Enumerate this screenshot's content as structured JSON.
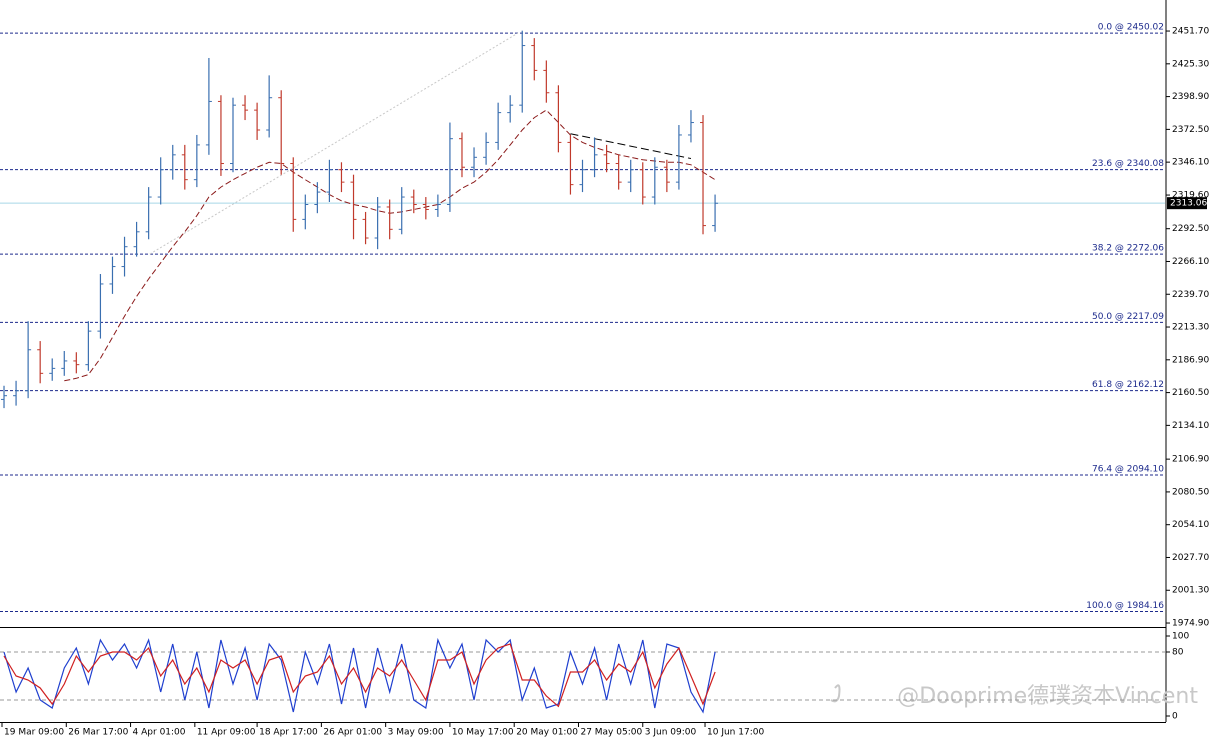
{
  "chart_data": [
    {
      "type": "ohlc",
      "up_color": "#3a6fb0",
      "down_color": "#c0392b",
      "x": [
        1,
        4,
        7,
        10,
        13,
        16,
        19,
        22,
        25,
        28,
        31,
        34,
        37,
        40,
        43,
        46,
        49,
        52,
        55,
        58,
        61,
        64,
        67,
        70,
        73,
        76,
        79,
        82,
        85,
        88,
        91,
        94,
        97,
        100,
        103,
        106,
        109,
        112,
        115,
        118,
        121,
        124,
        127,
        130,
        133,
        136,
        139,
        142,
        145,
        148,
        151,
        154,
        157,
        160,
        163,
        166,
        169,
        172,
        175,
        178
      ],
      "open": [
        2155,
        2158,
        2162,
        2195,
        2176,
        2180,
        2186,
        2183,
        2210,
        2248,
        2262,
        2278,
        2290,
        2318,
        2340,
        2352,
        2332,
        2360,
        2395,
        2345,
        2392,
        2388,
        2372,
        2398,
        2345,
        2300,
        2312,
        2322,
        2340,
        2330,
        2300,
        2285,
        2310,
        2292,
        2318,
        2312,
        2308,
        2312,
        2365,
        2342,
        2350,
        2362,
        2386,
        2392,
        2440,
        2420,
        2402,
        2362,
        2328,
        2340,
        2352,
        2345,
        2330,
        2340,
        2318,
        2342,
        2330,
        2368,
        2378,
        2295
      ],
      "high": [
        2166,
        2170,
        2218,
        2202,
        2188,
        2194,
        2193,
        2218,
        2256,
        2270,
        2286,
        2298,
        2326,
        2350,
        2360,
        2360,
        2368,
        2430,
        2400,
        2398,
        2400,
        2394,
        2416,
        2404,
        2350,
        2320,
        2330,
        2348,
        2346,
        2336,
        2306,
        2318,
        2316,
        2326,
        2324,
        2318,
        2320,
        2378,
        2370,
        2358,
        2370,
        2394,
        2400,
        2452,
        2446,
        2428,
        2408,
        2368,
        2348,
        2366,
        2360,
        2352,
        2348,
        2346,
        2350,
        2348,
        2376,
        2388,
        2384,
        2320
      ],
      "low": [
        2148,
        2150,
        2156,
        2168,
        2170,
        2174,
        2176,
        2178,
        2204,
        2240,
        2254,
        2270,
        2284,
        2312,
        2332,
        2324,
        2326,
        2352,
        2335,
        2338,
        2380,
        2364,
        2366,
        2336,
        2290,
        2292,
        2305,
        2314,
        2322,
        2284,
        2280,
        2276,
        2284,
        2288,
        2305,
        2300,
        2302,
        2306,
        2334,
        2334,
        2344,
        2356,
        2378,
        2386,
        2412,
        2394,
        2354,
        2320,
        2322,
        2334,
        2338,
        2324,
        2322,
        2312,
        2312,
        2322,
        2324,
        2362,
        2288,
        2290
      ],
      "close": [
        2158,
        2162,
        2195,
        2176,
        2180,
        2186,
        2183,
        2210,
        2248,
        2262,
        2278,
        2290,
        2318,
        2340,
        2352,
        2332,
        2360,
        2395,
        2345,
        2392,
        2388,
        2372,
        2398,
        2345,
        2300,
        2312,
        2322,
        2340,
        2330,
        2300,
        2285,
        2310,
        2292,
        2318,
        2312,
        2308,
        2312,
        2365,
        2342,
        2350,
        2362,
        2386,
        2392,
        2440,
        2420,
        2402,
        2362,
        2328,
        2340,
        2352,
        2345,
        2330,
        2340,
        2318,
        2342,
        2330,
        2368,
        2378,
        2295,
        2313
      ],
      "moving_average": {
        "color": "#8b1a1a",
        "values": [
          null,
          null,
          null,
          null,
          null,
          2170,
          2172,
          2175,
          2188,
          2205,
          2222,
          2238,
          2252,
          2265,
          2278,
          2290,
          2303,
          2318,
          2326,
          2332,
          2337,
          2342,
          2346,
          2345,
          2338,
          2332,
          2326,
          2320,
          2315,
          2312,
          2310,
          2307,
          2305,
          2306,
          2308,
          2310,
          2312,
          2318,
          2325,
          2330,
          2338,
          2348,
          2360,
          2372,
          2382,
          2388,
          2378,
          2368,
          2362,
          2358,
          2355,
          2352,
          2350,
          2348,
          2347,
          2346,
          2346,
          2344,
          2338,
          2332
        ]
      },
      "trendline": {
        "color": "#000000",
        "x": [
          142,
          172
        ],
        "y": [
          2369,
          2349
        ]
      },
      "fib_line": {
        "color": "#c8c8c8",
        "x": [
          37.3,
          128.9
        ],
        "y": [
          2272.06,
          2450.02
        ]
      },
      "levels": [
        {
          "label": "0.0 @ 2450.02",
          "value": 2450.02
        },
        {
          "label": "23.6 @ 2340.08",
          "value": 2340.08
        },
        {
          "label": "38.2 @ 2272.06",
          "value": 2272.06
        },
        {
          "label": "50.0 @ 2217.09",
          "value": 2217.09
        },
        {
          "label": "61.8 @ 2162.12",
          "value": 2162.12
        },
        {
          "label": "76.4 @ 2094.10",
          "value": 2094.1
        },
        {
          "label": "100.0 @ 1984.16",
          "value": 1984.16
        }
      ],
      "current": {
        "value": 2313.06,
        "label": "2313.06"
      },
      "xlim": [
        0,
        290
      ],
      "xticks": [
        {
          "value": 0.5,
          "label": "19 Mar 09:00"
        },
        {
          "value": 16.5,
          "label": "26 Mar 17:00"
        },
        {
          "value": 32.5,
          "label": "4 Apr 01:00"
        },
        {
          "value": 48.5,
          "label": "11 Apr 09:00"
        },
        {
          "value": 64,
          "label": "18 Apr 17:00"
        },
        {
          "value": 80,
          "label": "26 Apr 01:00"
        },
        {
          "value": 96,
          "label": "3 May 09:00"
        },
        {
          "value": 112,
          "label": "10 May 17:00"
        },
        {
          "value": 128,
          "label": "20 May 01:00"
        },
        {
          "value": 144,
          "label": "27 May 05:00"
        },
        {
          "value": 160,
          "label": "3 Jun 09:00"
        },
        {
          "value": 175.5,
          "label": "10 Jun 17:00"
        }
      ],
      "ylim": [
        1971.7,
        2476.7
      ],
      "yticks": [
        {
          "value": 2451.7,
          "label": "2451.70"
        },
        {
          "value": 2425.3,
          "label": "2425.30"
        },
        {
          "value": 2398.9,
          "label": "2398.90"
        },
        {
          "value": 2372.5,
          "label": "2372.50"
        },
        {
          "value": 2346.1,
          "label": "2346.10"
        },
        {
          "value": 2319.6,
          "label": "2319.60"
        },
        {
          "value": 2292.5,
          "label": "2292.50"
        },
        {
          "value": 2266.1,
          "label": "2266.10"
        },
        {
          "value": 2239.7,
          "label": "2239.70"
        },
        {
          "value": 2213.3,
          "label": "2213.30"
        },
        {
          "value": 2186.9,
          "label": "2186.90"
        },
        {
          "value": 2160.5,
          "label": "2160.50"
        },
        {
          "value": 2134.1,
          "label": "2134.10"
        },
        {
          "value": 2106.9,
          "label": "2106.90"
        },
        {
          "value": 2080.5,
          "label": "2080.50"
        },
        {
          "value": 2054.1,
          "label": "2054.10"
        },
        {
          "value": 2027.7,
          "label": "2027.70"
        },
        {
          "value": 2001.3,
          "label": "2001.30"
        },
        {
          "value": 1974.9,
          "label": "1974.90"
        }
      ]
    },
    {
      "type": "line",
      "x": [
        1,
        4,
        7,
        10,
        13,
        16,
        19,
        22,
        25,
        28,
        31,
        34,
        37,
        40,
        43,
        46,
        49,
        52,
        55,
        58,
        61,
        64,
        67,
        70,
        73,
        76,
        79,
        82,
        85,
        88,
        91,
        94,
        97,
        100,
        103,
        106,
        109,
        112,
        115,
        118,
        121,
        124,
        127,
        130,
        133,
        136,
        139,
        142,
        145,
        148,
        151,
        154,
        157,
        160,
        163,
        166,
        169,
        172,
        175,
        178
      ],
      "series": [
        {
          "color": "#1f3fcf",
          "values": [
            80,
            30,
            60,
            20,
            10,
            60,
            85,
            40,
            95,
            70,
            90,
            60,
            95,
            30,
            90,
            20,
            80,
            10,
            95,
            40,
            85,
            20,
            90,
            70,
            5,
            80,
            40,
            90,
            15,
            85,
            10,
            85,
            30,
            90,
            20,
            10,
            95,
            60,
            90,
            20,
            95,
            80,
            95,
            20,
            60,
            10,
            15,
            80,
            40,
            85,
            20,
            90,
            40,
            95,
            10,
            90,
            85,
            30,
            5,
            80
          ]
        },
        {
          "color": "#d02020",
          "values": [
            75,
            50,
            45,
            35,
            15,
            40,
            75,
            55,
            75,
            80,
            80,
            70,
            85,
            50,
            70,
            40,
            60,
            30,
            70,
            60,
            70,
            40,
            70,
            75,
            30,
            50,
            55,
            75,
            40,
            60,
            30,
            60,
            50,
            70,
            45,
            20,
            70,
            70,
            80,
            40,
            70,
            85,
            90,
            45,
            45,
            25,
            12,
            55,
            55,
            70,
            45,
            65,
            55,
            80,
            35,
            65,
            85,
            50,
            15,
            55
          ]
        }
      ],
      "levels": [
        20,
        80
      ],
      "xlim": [
        0,
        290
      ],
      "ylim": [
        -7.5,
        110
      ],
      "yticks": [
        0,
        80,
        100
      ]
    }
  ],
  "watermark": "@Dooprime德璞资本Vincent"
}
